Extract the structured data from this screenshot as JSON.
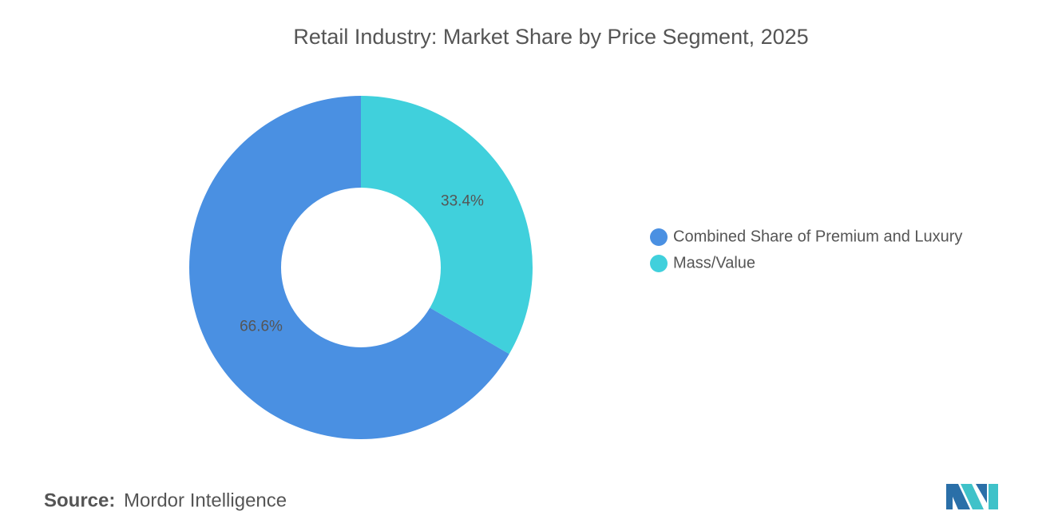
{
  "chart_data": {
    "type": "donut",
    "title": "Retail Industry: Market Share by Price Segment, 2025",
    "categories": [
      "Combined Share of Premium and Luxury",
      "Mass/Value"
    ],
    "values": [
      66.6,
      33.4
    ],
    "value_labels": [
      "66.6%",
      "33.4%"
    ],
    "colors": [
      "#4a90e2",
      "#40d0dc"
    ],
    "legend": "right",
    "source_label": "Source:",
    "source": "Mordor Intelligence"
  }
}
